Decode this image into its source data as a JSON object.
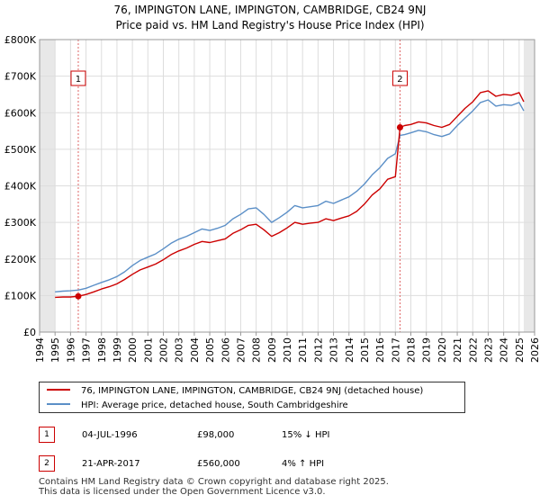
{
  "chart_data": {
    "type": "line",
    "title": "76, IMPINGTON LANE, IMPINGTON, CAMBRIDGE, CB24 9NJ",
    "subtitle": "Price paid vs. HM Land Registry's House Price Index (HPI)",
    "xlim": [
      1994.0,
      2026.0
    ],
    "ylim": [
      0,
      800000
    ],
    "x_ticks": [
      "1994",
      "1995",
      "1996",
      "1997",
      "1998",
      "1999",
      "2000",
      "2001",
      "2002",
      "2003",
      "2004",
      "2005",
      "2006",
      "2007",
      "2008",
      "2009",
      "2010",
      "2011",
      "2012",
      "2013",
      "2014",
      "2015",
      "2016",
      "2017",
      "2018",
      "2019",
      "2020",
      "2021",
      "2022",
      "2023",
      "2024",
      "2025",
      "2026"
    ],
    "y_ticks": [
      {
        "value": 0,
        "label": "£0"
      },
      {
        "value": 100000,
        "label": "£100K"
      },
      {
        "value": 200000,
        "label": "£200K"
      },
      {
        "value": 300000,
        "label": "£300K"
      },
      {
        "value": 400000,
        "label": "£400K"
      },
      {
        "value": 500000,
        "label": "£500K"
      },
      {
        "value": 600000,
        "label": "£600K"
      },
      {
        "value": 700000,
        "label": "£700K"
      },
      {
        "value": 800000,
        "label": "£800K"
      }
    ],
    "grid": true,
    "series": [
      {
        "name": "76, IMPINGTON LANE, IMPINGTON, CAMBRIDGE, CB24 9NJ (detached house)",
        "color": "#cc0000",
        "x": [
          1995.0,
          1995.5,
          1996.0,
          1996.5,
          1997.0,
          1997.5,
          1998.0,
          1998.5,
          1999.0,
          1999.5,
          2000.0,
          2000.5,
          2001.0,
          2001.5,
          2002.0,
          2002.5,
          2003.0,
          2003.5,
          2004.0,
          2004.5,
          2005.0,
          2005.5,
          2006.0,
          2006.5,
          2007.0,
          2007.5,
          2008.0,
          2008.5,
          2009.0,
          2009.5,
          2010.0,
          2010.5,
          2011.0,
          2011.5,
          2012.0,
          2012.5,
          2013.0,
          2013.5,
          2014.0,
          2014.5,
          2015.0,
          2015.5,
          2016.0,
          2016.5,
          2017.0,
          2017.3,
          2017.6,
          2018.0,
          2018.5,
          2019.0,
          2019.5,
          2020.0,
          2020.5,
          2021.0,
          2021.5,
          2022.0,
          2022.5,
          2023.0,
          2023.5,
          2024.0,
          2024.5,
          2025.0,
          2025.3
        ],
        "values": [
          95000,
          96000,
          96000,
          98000,
          103000,
          110000,
          118000,
          124000,
          132000,
          144000,
          158000,
          170000,
          178000,
          186000,
          198000,
          212000,
          222000,
          230000,
          240000,
          248000,
          245000,
          250000,
          255000,
          270000,
          280000,
          292000,
          295000,
          280000,
          262000,
          272000,
          285000,
          300000,
          295000,
          298000,
          300000,
          310000,
          305000,
          312000,
          318000,
          330000,
          350000,
          375000,
          392000,
          418000,
          425000,
          560000,
          565000,
          568000,
          575000,
          572000,
          565000,
          560000,
          568000,
          590000,
          612000,
          630000,
          655000,
          660000,
          645000,
          650000,
          648000,
          655000,
          630000
        ]
      },
      {
        "name": "HPI: Average price, detached house, South Cambridgeshire",
        "color": "#5b8fc7",
        "x": [
          1995.0,
          1995.5,
          1996.0,
          1996.5,
          1997.0,
          1997.5,
          1998.0,
          1998.5,
          1999.0,
          1999.5,
          2000.0,
          2000.5,
          2001.0,
          2001.5,
          2002.0,
          2002.5,
          2003.0,
          2003.5,
          2004.0,
          2004.5,
          2005.0,
          2005.5,
          2006.0,
          2006.5,
          2007.0,
          2007.5,
          2008.0,
          2008.5,
          2009.0,
          2009.5,
          2010.0,
          2010.5,
          2011.0,
          2011.5,
          2012.0,
          2012.5,
          2013.0,
          2013.5,
          2014.0,
          2014.5,
          2015.0,
          2015.5,
          2016.0,
          2016.5,
          2017.0,
          2017.3,
          2017.6,
          2018.0,
          2018.5,
          2019.0,
          2019.5,
          2020.0,
          2020.5,
          2021.0,
          2021.5,
          2022.0,
          2022.5,
          2023.0,
          2023.5,
          2024.0,
          2024.5,
          2025.0,
          2025.3
        ],
        "values": [
          110000,
          112000,
          113000,
          115000,
          120000,
          128000,
          136000,
          143000,
          152000,
          165000,
          182000,
          196000,
          205000,
          214000,
          228000,
          243000,
          254000,
          262000,
          272000,
          282000,
          278000,
          284000,
          292000,
          310000,
          322000,
          337000,
          340000,
          322000,
          300000,
          313000,
          328000,
          346000,
          340000,
          343000,
          346000,
          358000,
          352000,
          361000,
          370000,
          385000,
          405000,
          430000,
          450000,
          475000,
          488000,
          538000,
          540000,
          545000,
          552000,
          548000,
          540000,
          535000,
          542000,
          565000,
          585000,
          605000,
          628000,
          635000,
          618000,
          622000,
          620000,
          628000,
          605000
        ]
      }
    ],
    "sales": [
      {
        "label": "1",
        "x": 1996.5,
        "price": 98000
      },
      {
        "label": "2",
        "x": 2017.3,
        "price": 560000
      }
    ],
    "annotations": [
      {
        "label": "1",
        "x": 1996.5
      },
      {
        "label": "2",
        "x": 2017.3
      }
    ],
    "shaded_ranges": [
      [
        1994.0,
        1995.0
      ],
      [
        2025.3,
        2026.0
      ]
    ]
  },
  "legend": {
    "line1": "76, IMPINGTON LANE, IMPINGTON, CAMBRIDGE, CB24 9NJ (detached house)",
    "line2": "HPI: Average price, detached house, South Cambridgeshire"
  },
  "transactions": [
    {
      "num": "1",
      "date": "04-JUL-1996",
      "price": "£98,000",
      "hpi": "15% ↓ HPI"
    },
    {
      "num": "2",
      "date": "21-APR-2017",
      "price": "£560,000",
      "hpi": "4% ↑ HPI"
    }
  ],
  "footer": {
    "line1": "Contains HM Land Registry data © Crown copyright and database right 2025.",
    "line2": "This data is licensed under the Open Government Licence v3.0."
  },
  "colors": {
    "red": "#cc0000",
    "blue": "#5b8fc7",
    "grid": "#dddddd",
    "shade": "#e8e8e8"
  }
}
